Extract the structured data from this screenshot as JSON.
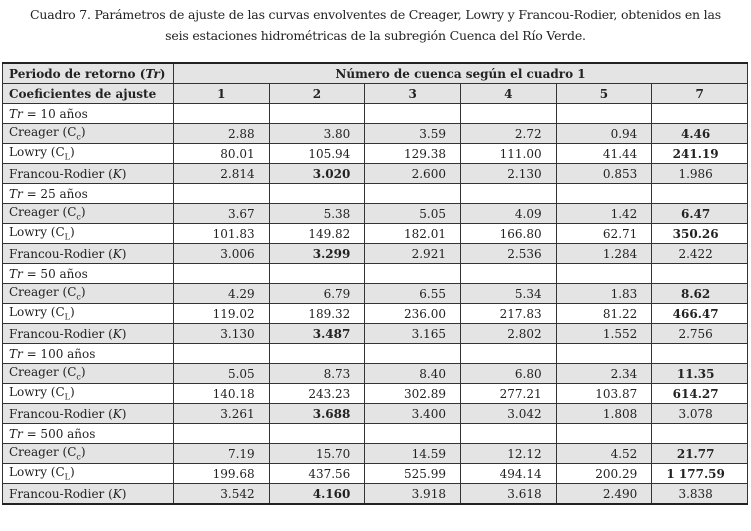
{
  "caption": {
    "line1": "Cuadro 7. Parámetros de ajuste de las curvas envolventes de Creager, Lowry y Francou-Rodier, obtenidos en las",
    "line2": "seis estaciones hidrométricas de la subregión Cuenca del Río Verde."
  },
  "header": {
    "row1_label_prefix": "Periodo de retorno (",
    "row1_label_italic": "Tr",
    "row1_label_suffix": ")",
    "group_title": "Número de cuenca según el cuadro 1",
    "row2_label": "Coeficientes de ajuste",
    "columns": [
      "1",
      "2",
      "3",
      "4",
      "5",
      "7"
    ]
  },
  "coef_labels": {
    "creager": {
      "prefix": "Creager (C",
      "sub": "c",
      "suffix": ")"
    },
    "lowry": {
      "prefix": "Lowry (C",
      "sub": "L",
      "suffix": ")"
    },
    "francou": {
      "prefix": "Francou-Rodier (",
      "italic": "K",
      "suffix": ")"
    }
  },
  "groups": [
    {
      "tr_symbol": "Tr",
      "tr_text": " = 10 años",
      "creager": [
        "2.88",
        "3.80",
        "3.59",
        "2.72",
        "0.94",
        "4.46"
      ],
      "lowry": [
        "80.01",
        "105.94",
        "129.38",
        "111.00",
        "41.44",
        "241.19"
      ],
      "francou": [
        "2.814",
        "3.020",
        "2.600",
        "2.130",
        "0.853",
        "1.986"
      ]
    },
    {
      "tr_symbol": "Tr",
      "tr_text": " = 25 años",
      "creager": [
        "3.67",
        "5.38",
        "5.05",
        "4.09",
        "1.42",
        "6.47"
      ],
      "lowry": [
        "101.83",
        "149.82",
        "182.01",
        "166.80",
        "62.71",
        "350.26"
      ],
      "francou": [
        "3.006",
        "3.299",
        "2.921",
        "2.536",
        "1.284",
        "2.422"
      ]
    },
    {
      "tr_symbol": "Tr",
      "tr_text": " = 50 años",
      "creager": [
        "4.29",
        "6.79",
        "6.55",
        "5.34",
        "1.83",
        "8.62"
      ],
      "lowry": [
        "119.02",
        "189.32",
        "236.00",
        "217.83",
        "81.22",
        "466.47"
      ],
      "francou": [
        "3.130",
        "3.487",
        "3.165",
        "2.802",
        "1.552",
        "2.756"
      ]
    },
    {
      "tr_symbol": "Tr",
      "tr_text": " = 100 años",
      "creager": [
        "5.05",
        "8.73",
        "8.40",
        "6.80",
        "2.34",
        "11.35"
      ],
      "lowry": [
        "140.18",
        "243.23",
        "302.89",
        "277.21",
        "103.87",
        "614.27"
      ],
      "francou": [
        "3.261",
        "3.688",
        "3.400",
        "3.042",
        "1.808",
        "3.078"
      ]
    },
    {
      "tr_symbol": "Tr",
      "tr_text": " = 500 años",
      "creager": [
        "7.19",
        "15.70",
        "14.59",
        "12.12",
        "4.52",
        "21.77"
      ],
      "lowry": [
        "199.68",
        "437.56",
        "525.99",
        "494.14",
        "200.29",
        "1 177.59"
      ],
      "francou": [
        "3.542",
        "4.160",
        "3.918",
        "3.618",
        "2.490",
        "3.838"
      ]
    }
  ]
}
